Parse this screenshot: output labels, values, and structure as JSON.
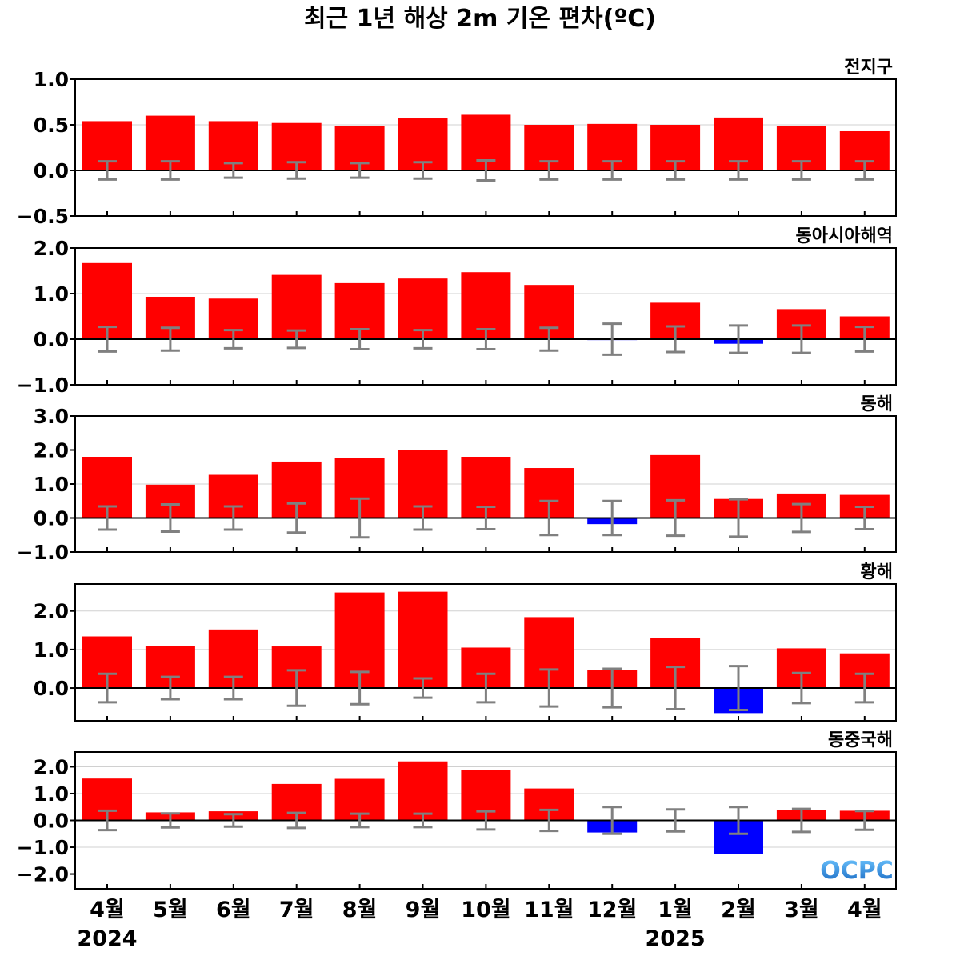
{
  "title": "최근 1년 해상 2m 기온 편차(ºC)",
  "logo": "OCPC",
  "colors": {
    "positive": "#ff0000",
    "negative": "#0000ff",
    "error_bar": "#808080",
    "grid": "#d0d0d0",
    "zero_line": "#000000"
  },
  "x_labels": [
    "4월",
    "5월",
    "6월",
    "7월",
    "8월",
    "9월",
    "10월",
    "11월",
    "12월",
    "1월",
    "2월",
    "3월",
    "4월"
  ],
  "years": [
    {
      "label": "2024",
      "index": 0
    },
    {
      "label": "2025",
      "index": 9
    }
  ],
  "chart_data": [
    {
      "type": "bar",
      "region": "전지구",
      "categories": [
        "4월",
        "5월",
        "6월",
        "7월",
        "8월",
        "9월",
        "10월",
        "11월",
        "12월",
        "1월",
        "2월",
        "3월",
        "4월"
      ],
      "values": [
        0.54,
        0.6,
        0.54,
        0.52,
        0.49,
        0.57,
        0.61,
        0.5,
        0.51,
        0.5,
        0.58,
        0.49,
        0.43
      ],
      "error_bounds": [
        0.1,
        0.1,
        0.08,
        0.09,
        0.08,
        0.09,
        0.11,
        0.1,
        0.1,
        0.1,
        0.1,
        0.1,
        0.1
      ],
      "ylim": [
        -0.5,
        1.0
      ],
      "yticks": [
        -0.5,
        0.0,
        0.5,
        1.0
      ],
      "ytick_labels": [
        "−0.5",
        "0.0",
        "0.5",
        "1.0"
      ],
      "grid": true
    },
    {
      "type": "bar",
      "region": "동아시아해역",
      "categories": [
        "4월",
        "5월",
        "6월",
        "7월",
        "8월",
        "9월",
        "10월",
        "11월",
        "12월",
        "1월",
        "2월",
        "3월",
        "4월"
      ],
      "values": [
        1.67,
        0.93,
        0.89,
        1.41,
        1.23,
        1.33,
        1.47,
        1.19,
        -0.02,
        0.8,
        -0.1,
        0.66,
        0.5
      ],
      "error_bounds": [
        0.27,
        0.25,
        0.2,
        0.19,
        0.22,
        0.2,
        0.22,
        0.25,
        0.34,
        0.28,
        0.3,
        0.3,
        0.27
      ],
      "ylim": [
        -1.0,
        2.0
      ],
      "yticks": [
        -1.0,
        0.0,
        1.0,
        2.0
      ],
      "ytick_labels": [
        "−1.0",
        "0.0",
        "1.0",
        "2.0"
      ],
      "grid": true
    },
    {
      "type": "bar",
      "region": "동해",
      "categories": [
        "4월",
        "5월",
        "6월",
        "7월",
        "8월",
        "9월",
        "10월",
        "11월",
        "12월",
        "1월",
        "2월",
        "3월",
        "4월"
      ],
      "values": [
        1.8,
        0.98,
        1.27,
        1.66,
        1.76,
        2.0,
        1.8,
        1.47,
        -0.18,
        1.85,
        0.56,
        0.72,
        0.68
      ],
      "error_bounds": [
        0.34,
        0.4,
        0.34,
        0.43,
        0.57,
        0.34,
        0.33,
        0.5,
        0.5,
        0.52,
        0.55,
        0.41,
        0.33
      ],
      "ylim": [
        -1.0,
        3.0
      ],
      "yticks": [
        -1.0,
        0.0,
        1.0,
        2.0,
        3.0
      ],
      "ytick_labels": [
        "−1.0",
        "0.0",
        "1.0",
        "2.0",
        "3.0"
      ],
      "grid": true
    },
    {
      "type": "bar",
      "region": "황해",
      "categories": [
        "4월",
        "5월",
        "6월",
        "7월",
        "8월",
        "9월",
        "10월",
        "11월",
        "12월",
        "1월",
        "2월",
        "3월",
        "4월"
      ],
      "values": [
        1.34,
        1.09,
        1.52,
        1.08,
        2.48,
        2.5,
        1.05,
        1.84,
        0.47,
        1.3,
        -0.65,
        1.03,
        0.9
      ],
      "error_bounds": [
        0.37,
        0.29,
        0.29,
        0.46,
        0.42,
        0.25,
        0.37,
        0.48,
        0.5,
        0.55,
        0.57,
        0.39,
        0.37
      ],
      "ylim": [
        -0.85,
        2.7
      ],
      "yticks": [
        0.0,
        1.0,
        2.0
      ],
      "ytick_labels": [
        "0.0",
        "1.0",
        "2.0"
      ],
      "grid": true
    },
    {
      "type": "bar",
      "region": "동중국해",
      "categories": [
        "4월",
        "5월",
        "6월",
        "7월",
        "8월",
        "9월",
        "10월",
        "11월",
        "12월",
        "1월",
        "2월",
        "3월",
        "4월"
      ],
      "values": [
        1.56,
        0.3,
        0.34,
        1.36,
        1.55,
        2.2,
        1.87,
        1.19,
        -0.45,
        -0.03,
        -1.25,
        0.38,
        0.36
      ],
      "error_bounds": [
        0.36,
        0.26,
        0.23,
        0.28,
        0.25,
        0.25,
        0.34,
        0.39,
        0.5,
        0.41,
        0.5,
        0.43,
        0.35
      ],
      "ylim": [
        -2.55,
        2.55
      ],
      "yticks": [
        -2.0,
        -1.0,
        0.0,
        1.0,
        2.0
      ],
      "ytick_labels": [
        "−2.0",
        "−1.0",
        "0.0",
        "1.0",
        "2.0"
      ],
      "grid": true
    }
  ]
}
